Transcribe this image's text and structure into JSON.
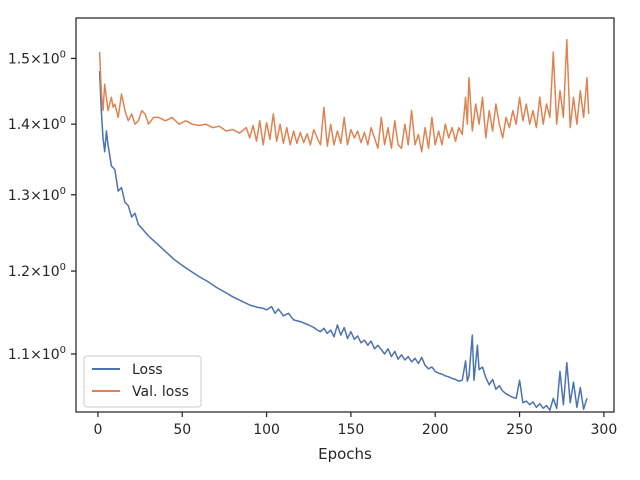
{
  "chart_data": {
    "type": "line",
    "title": "",
    "xlabel": "Epochs",
    "ylabel": "",
    "xlim": [
      -13,
      306
    ],
    "ylim": [
      1.035,
      1.565
    ],
    "yscale": "log",
    "x_ticks": [
      0,
      50,
      100,
      150,
      200,
      250,
      300
    ],
    "x_tick_labels": [
      "0",
      "50",
      "100",
      "150",
      "200",
      "250",
      "300"
    ],
    "y_ticks": [
      1.1,
      1.2,
      1.3,
      1.4,
      1.5
    ],
    "y_tick_labels": [
      "1.1",
      "1.2",
      "1.3",
      "1.4",
      "1.5"
    ],
    "y_tick_suffix_base": "10",
    "y_tick_suffix_exp": "0",
    "grid": false,
    "legend_position": "lower-left",
    "colors": {
      "loss": "#4c72b0",
      "val_loss": "#dd8452",
      "axes": "#262626"
    },
    "series": [
      {
        "name": "Loss",
        "color": "#4c72b0",
        "points": [
          [
            1,
            1.48
          ],
          [
            2,
            1.42
          ],
          [
            3,
            1.38
          ],
          [
            4,
            1.36
          ],
          [
            5,
            1.39
          ],
          [
            6,
            1.37
          ],
          [
            8,
            1.34
          ],
          [
            10,
            1.335
          ],
          [
            12,
            1.305
          ],
          [
            14,
            1.31
          ],
          [
            16,
            1.29
          ],
          [
            18,
            1.285
          ],
          [
            20,
            1.27
          ],
          [
            22,
            1.275
          ],
          [
            24,
            1.26
          ],
          [
            26,
            1.255
          ],
          [
            30,
            1.245
          ],
          [
            35,
            1.235
          ],
          [
            40,
            1.225
          ],
          [
            45,
            1.215
          ],
          [
            50,
            1.207
          ],
          [
            55,
            1.2
          ],
          [
            60,
            1.193
          ],
          [
            65,
            1.187
          ],
          [
            70,
            1.18
          ],
          [
            75,
            1.174
          ],
          [
            80,
            1.168
          ],
          [
            85,
            1.163
          ],
          [
            90,
            1.158
          ],
          [
            95,
            1.155
          ],
          [
            98,
            1.154
          ],
          [
            100,
            1.152
          ],
          [
            103,
            1.156
          ],
          [
            105,
            1.148
          ],
          [
            107,
            1.153
          ],
          [
            110,
            1.145
          ],
          [
            113,
            1.148
          ],
          [
            116,
            1.14
          ],
          [
            120,
            1.138
          ],
          [
            125,
            1.134
          ],
          [
            128,
            1.131
          ],
          [
            130,
            1.128
          ],
          [
            132,
            1.126
          ],
          [
            134,
            1.13
          ],
          [
            136,
            1.124
          ],
          [
            138,
            1.128
          ],
          [
            140,
            1.12
          ],
          [
            142,
            1.134
          ],
          [
            144,
            1.122
          ],
          [
            146,
            1.131
          ],
          [
            148,
            1.118
          ],
          [
            150,
            1.126
          ],
          [
            152,
            1.117
          ],
          [
            154,
            1.121
          ],
          [
            156,
            1.113
          ],
          [
            158,
            1.116
          ],
          [
            160,
            1.11
          ],
          [
            162,
            1.115
          ],
          [
            164,
            1.106
          ],
          [
            166,
            1.11
          ],
          [
            168,
            1.105
          ],
          [
            170,
            1.1
          ],
          [
            172,
            1.106
          ],
          [
            174,
            1.097
          ],
          [
            176,
            1.103
          ],
          [
            178,
            1.094
          ],
          [
            180,
            1.099
          ],
          [
            182,
            1.093
          ],
          [
            184,
            1.097
          ],
          [
            186,
            1.091
          ],
          [
            188,
            1.095
          ],
          [
            190,
            1.089
          ],
          [
            192,
            1.096
          ],
          [
            194,
            1.087
          ],
          [
            196,
            1.083
          ],
          [
            198,
            1.085
          ],
          [
            200,
            1.08
          ],
          [
            202,
            1.078
          ],
          [
            204,
            1.077
          ],
          [
            206,
            1.075
          ],
          [
            208,
            1.074
          ],
          [
            210,
            1.072
          ],
          [
            212,
            1.071
          ],
          [
            214,
            1.069
          ],
          [
            216,
            1.07
          ],
          [
            218,
            1.092
          ],
          [
            219,
            1.069
          ],
          [
            220,
            1.075
          ],
          [
            222,
            1.122
          ],
          [
            223,
            1.07
          ],
          [
            225,
            1.11
          ],
          [
            226,
            1.082
          ],
          [
            228,
            1.085
          ],
          [
            230,
            1.073
          ],
          [
            232,
            1.065
          ],
          [
            234,
            1.071
          ],
          [
            236,
            1.06
          ],
          [
            238,
            1.064
          ],
          [
            240,
            1.058
          ],
          [
            242,
            1.055
          ],
          [
            244,
            1.053
          ],
          [
            246,
            1.051
          ],
          [
            248,
            1.05
          ],
          [
            250,
            1.07
          ],
          [
            252,
            1.045
          ],
          [
            254,
            1.047
          ],
          [
            256,
            1.043
          ],
          [
            258,
            1.046
          ],
          [
            260,
            1.04
          ],
          [
            262,
            1.044
          ],
          [
            264,
            1.039
          ],
          [
            266,
            1.042
          ],
          [
            268,
            1.037
          ],
          [
            270,
            1.05
          ],
          [
            272,
            1.039
          ],
          [
            274,
            1.08
          ],
          [
            276,
            1.043
          ],
          [
            278,
            1.09
          ],
          [
            280,
            1.045
          ],
          [
            282,
            1.068
          ],
          [
            284,
            1.04
          ],
          [
            286,
            1.062
          ],
          [
            288,
            1.038
          ],
          [
            290,
            1.05
          ]
        ]
      },
      {
        "name": "Val. loss",
        "color": "#dd8452",
        "points": [
          [
            1,
            1.51
          ],
          [
            2,
            1.45
          ],
          [
            3,
            1.42
          ],
          [
            4,
            1.46
          ],
          [
            5,
            1.44
          ],
          [
            6,
            1.42
          ],
          [
            7,
            1.43
          ],
          [
            8,
            1.44
          ],
          [
            9,
            1.425
          ],
          [
            10,
            1.43
          ],
          [
            12,
            1.41
          ],
          [
            14,
            1.445
          ],
          [
            16,
            1.42
          ],
          [
            18,
            1.405
          ],
          [
            20,
            1.415
          ],
          [
            22,
            1.4
          ],
          [
            24,
            1.405
          ],
          [
            26,
            1.42
          ],
          [
            28,
            1.415
          ],
          [
            30,
            1.4
          ],
          [
            33,
            1.41
          ],
          [
            36,
            1.41
          ],
          [
            40,
            1.405
          ],
          [
            44,
            1.41
          ],
          [
            48,
            1.4
          ],
          [
            52,
            1.405
          ],
          [
            56,
            1.4
          ],
          [
            60,
            1.398
          ],
          [
            64,
            1.4
          ],
          [
            68,
            1.395
          ],
          [
            72,
            1.397
          ],
          [
            76,
            1.39
          ],
          [
            80,
            1.392
          ],
          [
            84,
            1.387
          ],
          [
            88,
            1.395
          ],
          [
            90,
            1.38
          ],
          [
            92,
            1.398
          ],
          [
            94,
            1.375
          ],
          [
            96,
            1.405
          ],
          [
            98,
            1.37
          ],
          [
            100,
            1.402
          ],
          [
            102,
            1.378
          ],
          [
            104,
            1.415
          ],
          [
            106,
            1.375
          ],
          [
            108,
            1.4
          ],
          [
            110,
            1.372
          ],
          [
            112,
            1.395
          ],
          [
            114,
            1.37
          ],
          [
            116,
            1.39
          ],
          [
            118,
            1.372
          ],
          [
            120,
            1.388
          ],
          [
            122,
            1.373
          ],
          [
            124,
            1.386
          ],
          [
            126,
            1.37
          ],
          [
            128,
            1.392
          ],
          [
            130,
            1.38
          ],
          [
            132,
            1.37
          ],
          [
            134,
            1.425
          ],
          [
            136,
            1.368
          ],
          [
            138,
            1.4
          ],
          [
            140,
            1.37
          ],
          [
            142,
            1.39
          ],
          [
            144,
            1.372
          ],
          [
            146,
            1.41
          ],
          [
            148,
            1.37
          ],
          [
            150,
            1.392
          ],
          [
            152,
            1.38
          ],
          [
            154,
            1.39
          ],
          [
            156,
            1.373
          ],
          [
            158,
            1.388
          ],
          [
            160,
            1.37
          ],
          [
            162,
            1.395
          ],
          [
            164,
            1.38
          ],
          [
            166,
            1.365
          ],
          [
            168,
            1.41
          ],
          [
            170,
            1.37
          ],
          [
            172,
            1.395
          ],
          [
            174,
            1.365
          ],
          [
            176,
            1.405
          ],
          [
            178,
            1.37
          ],
          [
            180,
            1.365
          ],
          [
            182,
            1.4
          ],
          [
            184,
            1.37
          ],
          [
            186,
            1.42
          ],
          [
            188,
            1.37
          ],
          [
            190,
            1.385
          ],
          [
            192,
            1.36
          ],
          [
            194,
            1.395
          ],
          [
            196,
            1.365
          ],
          [
            198,
            1.41
          ],
          [
            200,
            1.37
          ],
          [
            202,
            1.39
          ],
          [
            204,
            1.37
          ],
          [
            206,
            1.4
          ],
          [
            208,
            1.38
          ],
          [
            210,
            1.395
          ],
          [
            212,
            1.375
          ],
          [
            214,
            1.395
          ],
          [
            216,
            1.385
          ],
          [
            218,
            1.44
          ],
          [
            219,
            1.4
          ],
          [
            220,
            1.47
          ],
          [
            222,
            1.39
          ],
          [
            224,
            1.43
          ],
          [
            226,
            1.4
          ],
          [
            228,
            1.44
          ],
          [
            230,
            1.38
          ],
          [
            232,
            1.42
          ],
          [
            234,
            1.39
          ],
          [
            236,
            1.43
          ],
          [
            238,
            1.4
          ],
          [
            240,
            1.38
          ],
          [
            242,
            1.41
          ],
          [
            244,
            1.395
          ],
          [
            246,
            1.42
          ],
          [
            248,
            1.4
          ],
          [
            250,
            1.44
          ],
          [
            252,
            1.405
          ],
          [
            254,
            1.43
          ],
          [
            256,
            1.4
          ],
          [
            258,
            1.42
          ],
          [
            260,
            1.395
          ],
          [
            262,
            1.44
          ],
          [
            264,
            1.4
          ],
          [
            266,
            1.43
          ],
          [
            268,
            1.41
          ],
          [
            270,
            1.51
          ],
          [
            272,
            1.4
          ],
          [
            274,
            1.45
          ],
          [
            276,
            1.41
          ],
          [
            278,
            1.53
          ],
          [
            280,
            1.395
          ],
          [
            282,
            1.44
          ],
          [
            284,
            1.4
          ],
          [
            286,
            1.45
          ],
          [
            288,
            1.41
          ],
          [
            290,
            1.47
          ],
          [
            291,
            1.415
          ]
        ]
      }
    ]
  }
}
